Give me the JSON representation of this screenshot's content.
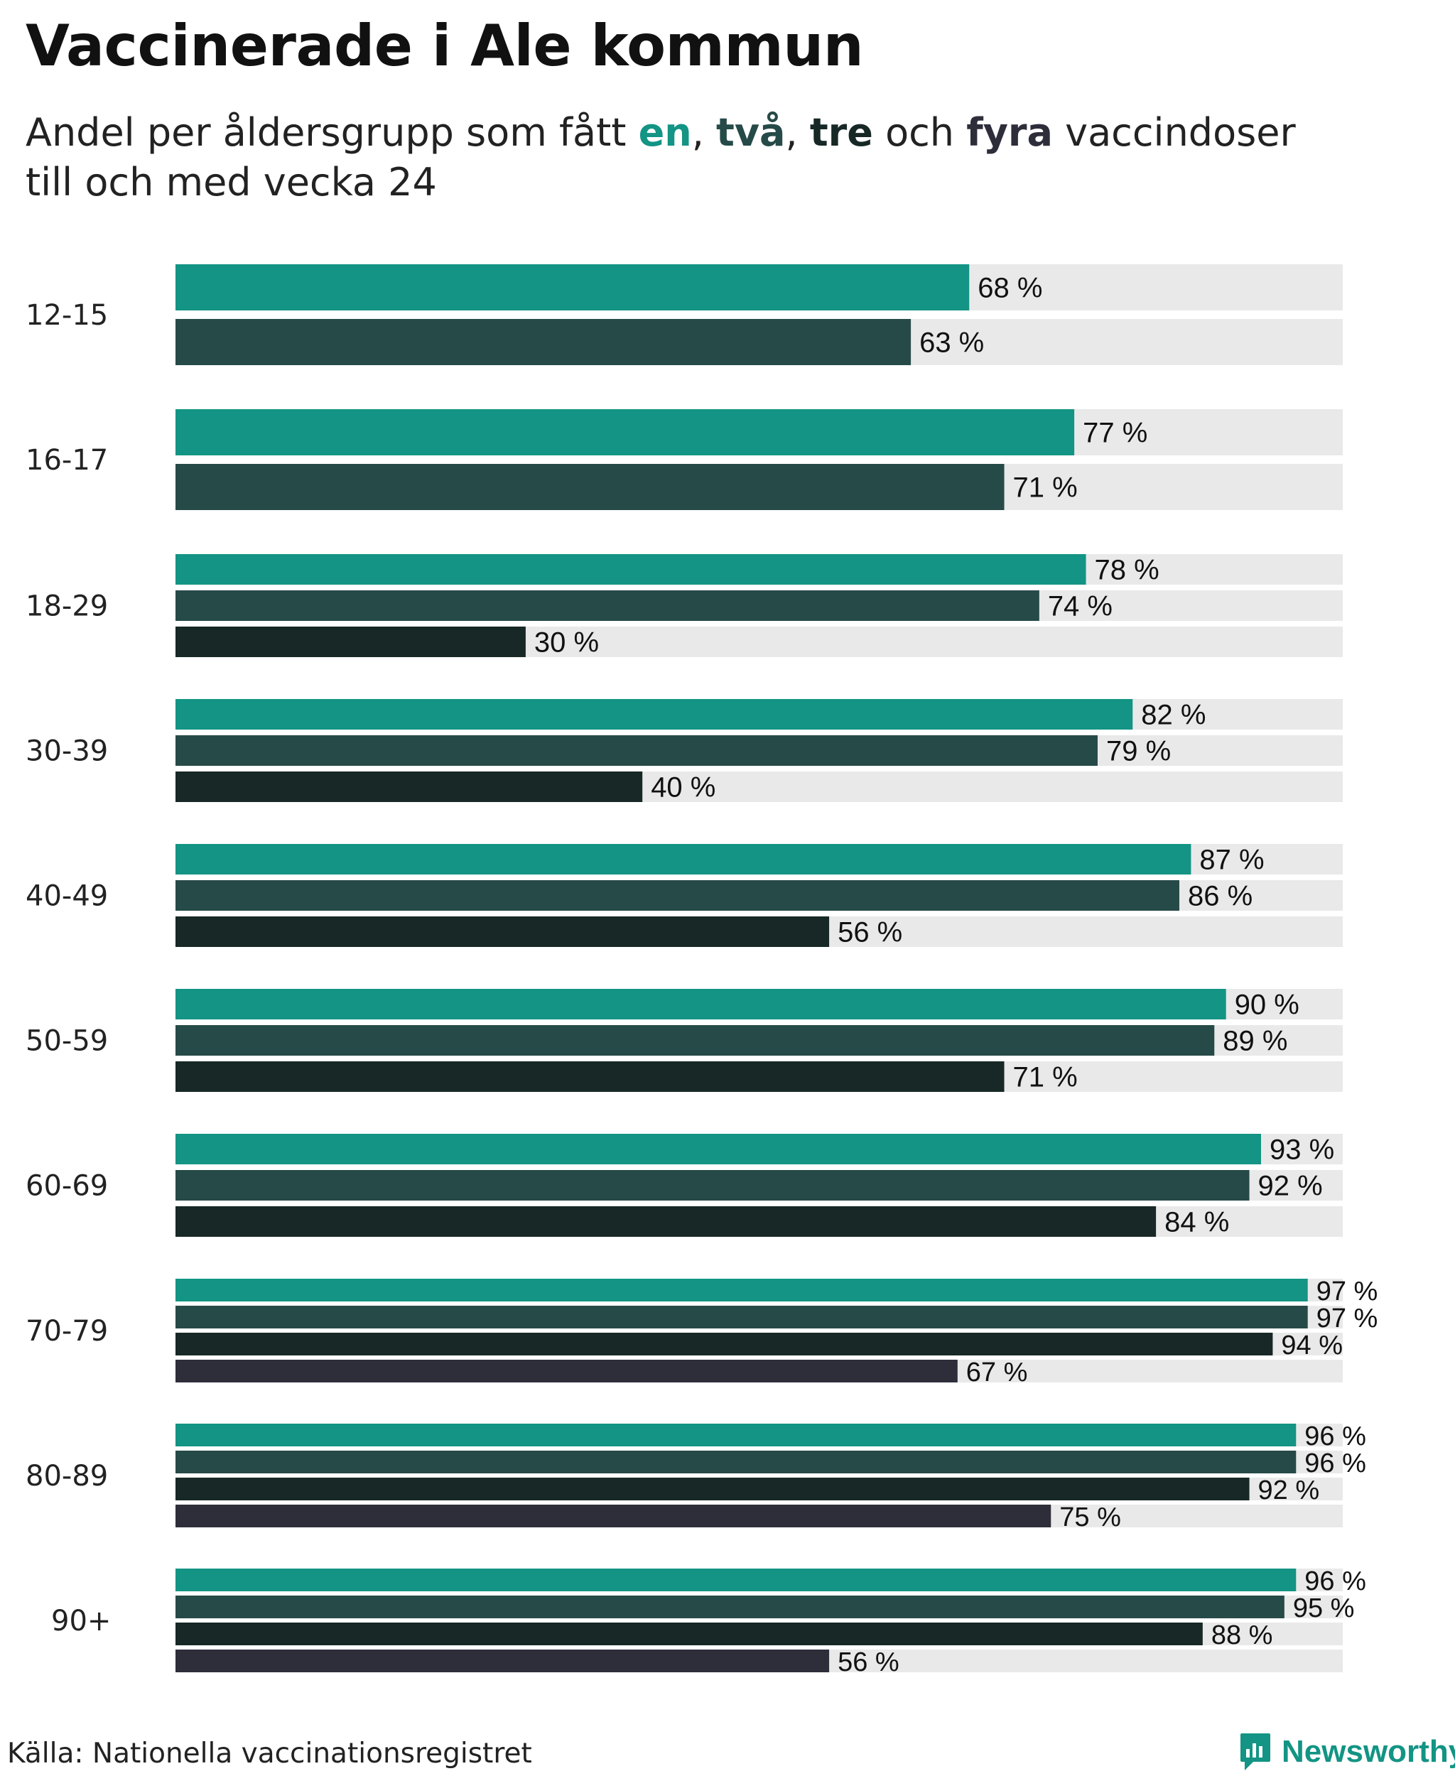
{
  "title": "Vaccinerade i Ale kommun",
  "subtitle": {
    "prefix": "Andel per åldersgrupp som fått ",
    "doses": [
      "en",
      "två",
      "tre",
      "fyra"
    ],
    "sep1": ", ",
    "sep2": ", ",
    "and": " och ",
    "suffix": " vaccindoser",
    "line2": "till och med vecka 24"
  },
  "colors": {
    "dose1": "#139484",
    "dose2": "#264a48",
    "dose3": "#172826",
    "dose4": "#2e2d3a",
    "track": "#e9e9e9",
    "brand": "#139484"
  },
  "chart_data": {
    "type": "bar",
    "orientation": "horizontal",
    "value_unit": "%",
    "xlim": [
      0,
      100
    ],
    "grid": false,
    "series_names": [
      "en",
      "två",
      "tre",
      "fyra"
    ],
    "categories": [
      "12-15",
      "16-17",
      "18-29",
      "30-39",
      "40-49",
      "50-59",
      "60-69",
      "70-79",
      "80-89",
      "90+"
    ],
    "groups": [
      {
        "category": "12-15",
        "values": [
          68,
          63
        ]
      },
      {
        "category": "16-17",
        "values": [
          77,
          71
        ]
      },
      {
        "category": "18-29",
        "values": [
          78,
          74,
          30
        ]
      },
      {
        "category": "30-39",
        "values": [
          82,
          79,
          40
        ]
      },
      {
        "category": "40-49",
        "values": [
          87,
          86,
          56
        ]
      },
      {
        "category": "50-59",
        "values": [
          90,
          89,
          71
        ]
      },
      {
        "category": "60-69",
        "values": [
          93,
          92,
          84
        ]
      },
      {
        "category": "70-79",
        "values": [
          97,
          97,
          94,
          67
        ]
      },
      {
        "category": "80-89",
        "values": [
          96,
          96,
          92,
          75
        ]
      },
      {
        "category": "90+",
        "values": [
          96,
          95,
          88,
          56
        ]
      }
    ]
  },
  "footer": {
    "source": "Källa: Nationella vaccinationsregistret",
    "brand": "Newsworthy",
    "brand_icon": "newsworthy-logo-icon"
  }
}
